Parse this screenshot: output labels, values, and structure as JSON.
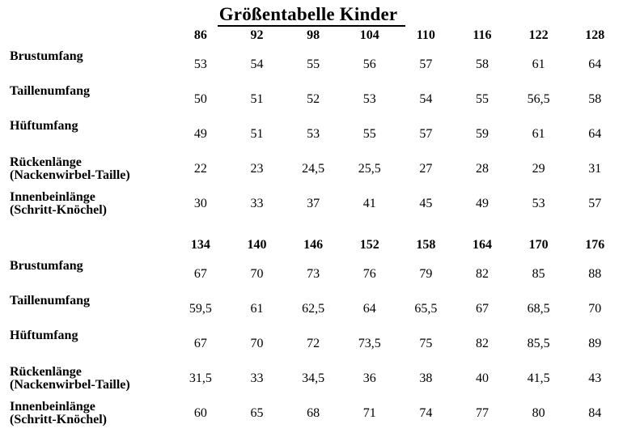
{
  "title": "Größentabelle Kinder",
  "colors": {
    "background": "#ffffff",
    "text": "#000000",
    "underline": "#000000"
  },
  "sections": [
    {
      "sizes": [
        "86",
        "92",
        "98",
        "104",
        "110",
        "116",
        "122",
        "128"
      ],
      "rows": [
        {
          "label": "Brustumfang",
          "sub": "",
          "values": [
            "53",
            "54",
            "55",
            "56",
            "57",
            "58",
            "61",
            "64"
          ]
        },
        {
          "label": "Taillenumfang",
          "sub": "",
          "values": [
            "50",
            "51",
            "52",
            "53",
            "54",
            "55",
            "56,5",
            "58"
          ]
        },
        {
          "label": "Hüftumfang",
          "sub": "",
          "values": [
            "49",
            "51",
            "53",
            "55",
            "57",
            "59",
            "61",
            "64"
          ]
        },
        {
          "label": "Rückenlänge",
          "sub": "(Nackenwirbel-Taille)",
          "values": [
            "22",
            "23",
            "24,5",
            "25,5",
            "27",
            "28",
            "29",
            "31"
          ]
        },
        {
          "label": "Innenbeinlänge",
          "sub": "(Schritt-Knöchel)",
          "values": [
            "30",
            "33",
            "37",
            "41",
            "45",
            "49",
            "53",
            "57"
          ]
        }
      ]
    },
    {
      "sizes": [
        "134",
        "140",
        "146",
        "152",
        "158",
        "164",
        "170",
        "176"
      ],
      "rows": [
        {
          "label": "Brustumfang",
          "sub": "",
          "values": [
            "67",
            "70",
            "73",
            "76",
            "79",
            "82",
            "85",
            "88"
          ]
        },
        {
          "label": "Taillenumfang",
          "sub": "",
          "values": [
            "59,5",
            "61",
            "62,5",
            "64",
            "65,5",
            "67",
            "68,5",
            "70"
          ]
        },
        {
          "label": "Hüftumfang",
          "sub": "",
          "values": [
            "67",
            "70",
            "72",
            "73,5",
            "75",
            "82",
            "85,5",
            "89"
          ]
        },
        {
          "label": "Rückenlänge",
          "sub": "(Nackenwirbel-Taille)",
          "values": [
            "31,5",
            "33",
            "34,5",
            "36",
            "38",
            "40",
            "41,5",
            "43"
          ]
        },
        {
          "label": "Innenbeinlänge",
          "sub": "(Schritt-Knöchel)",
          "values": [
            "60",
            "65",
            "68",
            "71",
            "74",
            "77",
            "80",
            "84"
          ]
        }
      ]
    }
  ]
}
